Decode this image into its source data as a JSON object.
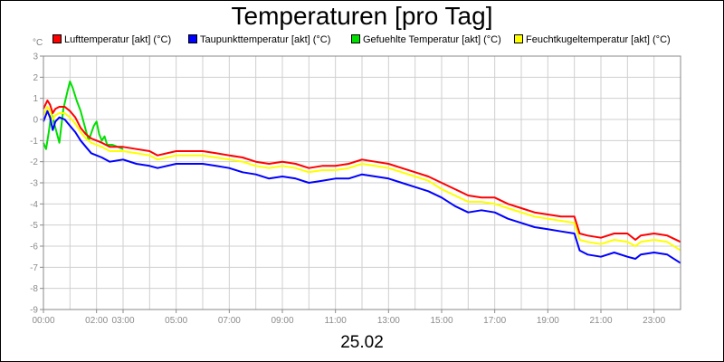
{
  "chart_data": {
    "type": "line",
    "title": "Temperaturen [pro Tag]",
    "unit_label": "°C",
    "date_label": "25.02",
    "ylim": [
      -9,
      3
    ],
    "yticks": [
      3,
      2,
      1,
      0,
      -1,
      -2,
      -3,
      -4,
      -5,
      -6,
      -7,
      -8,
      -9
    ],
    "xlim_hours": [
      0,
      24
    ],
    "xticks": [
      {
        "hour": 0,
        "label": "00:00"
      },
      {
        "hour": 2,
        "label": "02:00"
      },
      {
        "hour": 3,
        "label": "03:00"
      },
      {
        "hour": 5,
        "label": "05:00"
      },
      {
        "hour": 7,
        "label": "07:00"
      },
      {
        "hour": 9,
        "label": "09:00"
      },
      {
        "hour": 11,
        "label": "11:00"
      },
      {
        "hour": 13,
        "label": "13:00"
      },
      {
        "hour": 15,
        "label": "15:00"
      },
      {
        "hour": 17,
        "label": "17:00"
      },
      {
        "hour": 19,
        "label": "19:00"
      },
      {
        "hour": 21,
        "label": "21:00"
      },
      {
        "hour": 23,
        "label": "23:00"
      }
    ],
    "grid": true,
    "legend_position": "top",
    "series": [
      {
        "name": "Lufttemperatur [akt] (°C)",
        "color": "#ff0000",
        "x": [
          0,
          0.15,
          0.25,
          0.35,
          0.45,
          0.6,
          0.8,
          1.0,
          1.2,
          1.4,
          1.6,
          1.8,
          2.0,
          2.2,
          2.5,
          3.0,
          3.5,
          4.0,
          4.3,
          5.0,
          5.5,
          6.0,
          6.5,
          7.0,
          7.5,
          8.0,
          8.5,
          9.0,
          9.5,
          10.0,
          10.5,
          11.0,
          11.5,
          12.0,
          12.5,
          13.0,
          13.5,
          14.0,
          14.5,
          15.0,
          15.5,
          16.0,
          16.5,
          17.0,
          17.5,
          18.0,
          18.5,
          19.0,
          19.5,
          20.0,
          20.2,
          20.5,
          21.0,
          21.5,
          22.0,
          22.3,
          22.5,
          23.0,
          23.5,
          24.0
        ],
        "values": [
          0.5,
          0.9,
          0.7,
          0.3,
          0.5,
          0.6,
          0.6,
          0.4,
          0.1,
          -0.4,
          -0.7,
          -0.9,
          -1.0,
          -1.1,
          -1.3,
          -1.3,
          -1.4,
          -1.5,
          -1.7,
          -1.5,
          -1.5,
          -1.5,
          -1.6,
          -1.7,
          -1.8,
          -2.0,
          -2.1,
          -2.0,
          -2.1,
          -2.3,
          -2.2,
          -2.2,
          -2.1,
          -1.9,
          -2.0,
          -2.1,
          -2.3,
          -2.5,
          -2.7,
          -3.0,
          -3.3,
          -3.6,
          -3.7,
          -3.7,
          -4.0,
          -4.2,
          -4.4,
          -4.5,
          -4.6,
          -4.6,
          -5.4,
          -5.5,
          -5.6,
          -5.4,
          -5.4,
          -5.7,
          -5.5,
          -5.4,
          -5.5,
          -5.8
        ]
      },
      {
        "name": "Taupunkttemperatur [akt] (°C)",
        "color": "#0000ff",
        "x": [
          0,
          0.15,
          0.25,
          0.35,
          0.45,
          0.6,
          0.8,
          1.0,
          1.2,
          1.4,
          1.6,
          1.8,
          2.0,
          2.2,
          2.5,
          3.0,
          3.5,
          4.0,
          4.3,
          5.0,
          5.5,
          6.0,
          6.5,
          7.0,
          7.5,
          8.0,
          8.5,
          9.0,
          9.5,
          10.0,
          10.5,
          11.0,
          11.5,
          12.0,
          12.5,
          13.0,
          13.5,
          14.0,
          14.5,
          15.0,
          15.5,
          16.0,
          16.5,
          17.0,
          17.5,
          18.0,
          18.5,
          19.0,
          19.5,
          20.0,
          20.2,
          20.5,
          21.0,
          21.5,
          22.0,
          22.3,
          22.5,
          23.0,
          23.5,
          24.0
        ],
        "values": [
          -0.1,
          0.4,
          0.1,
          -0.5,
          -0.1,
          0.1,
          0.0,
          -0.3,
          -0.6,
          -1.0,
          -1.3,
          -1.6,
          -1.7,
          -1.8,
          -2.0,
          -1.9,
          -2.1,
          -2.2,
          -2.3,
          -2.1,
          -2.1,
          -2.1,
          -2.2,
          -2.3,
          -2.5,
          -2.6,
          -2.8,
          -2.7,
          -2.8,
          -3.0,
          -2.9,
          -2.8,
          -2.8,
          -2.6,
          -2.7,
          -2.8,
          -3.0,
          -3.2,
          -3.4,
          -3.7,
          -4.1,
          -4.4,
          -4.3,
          -4.4,
          -4.7,
          -4.9,
          -5.1,
          -5.2,
          -5.3,
          -5.4,
          -6.2,
          -6.4,
          -6.5,
          -6.3,
          -6.5,
          -6.6,
          -6.4,
          -6.3,
          -6.4,
          -6.8
        ]
      },
      {
        "name": "Gefuehlte Temperatur [akt] (°C)",
        "color": "#00e000",
        "x": [
          0,
          0.1,
          0.2,
          0.3,
          0.45,
          0.6,
          0.75,
          0.9,
          1.0,
          1.1,
          1.25,
          1.4,
          1.55,
          1.7,
          1.9,
          2.0,
          2.1,
          2.2,
          2.3,
          2.4,
          2.6,
          2.8,
          3.0
        ],
        "values": [
          -1.1,
          -1.4,
          -0.6,
          0.3,
          -0.4,
          -1.1,
          0.5,
          1.3,
          1.8,
          1.5,
          0.9,
          0.4,
          -0.3,
          -1.0,
          -0.3,
          -0.1,
          -0.7,
          -1.0,
          -0.8,
          -1.2,
          -1.2,
          -1.3,
          -1.4
        ]
      },
      {
        "name": "Feuchtkugeltemperatur [akt] (°C)",
        "color": "#ffff00",
        "x": [
          0,
          0.15,
          0.25,
          0.35,
          0.45,
          0.6,
          0.8,
          1.0,
          1.2,
          1.4,
          1.6,
          1.8,
          2.0,
          2.2,
          2.5,
          3.0,
          3.5,
          4.0,
          4.3,
          5.0,
          5.5,
          6.0,
          6.5,
          7.0,
          7.5,
          8.0,
          8.5,
          9.0,
          9.5,
          10.0,
          10.5,
          11.0,
          11.5,
          12.0,
          12.5,
          13.0,
          13.5,
          14.0,
          14.5,
          15.0,
          15.5,
          16.0,
          16.5,
          17.0,
          17.5,
          18.0,
          18.5,
          19.0,
          19.5,
          20.0,
          20.2,
          20.5,
          21.0,
          21.5,
          22.0,
          22.3,
          22.5,
          23.0,
          23.5,
          24.0
        ],
        "values": [
          0.2,
          0.6,
          0.4,
          0.0,
          0.2,
          0.3,
          0.3,
          0.1,
          -0.2,
          -0.6,
          -0.9,
          -1.1,
          -1.2,
          -1.3,
          -1.5,
          -1.5,
          -1.6,
          -1.7,
          -1.9,
          -1.7,
          -1.7,
          -1.7,
          -1.8,
          -1.9,
          -2.0,
          -2.2,
          -2.3,
          -2.2,
          -2.3,
          -2.5,
          -2.4,
          -2.4,
          -2.3,
          -2.1,
          -2.2,
          -2.3,
          -2.5,
          -2.7,
          -2.9,
          -3.3,
          -3.6,
          -3.9,
          -3.9,
          -4.0,
          -4.2,
          -4.4,
          -4.6,
          -4.7,
          -4.8,
          -4.9,
          -5.7,
          -5.8,
          -5.9,
          -5.7,
          -5.8,
          -6.0,
          -5.8,
          -5.7,
          -5.8,
          -6.2
        ]
      }
    ]
  }
}
